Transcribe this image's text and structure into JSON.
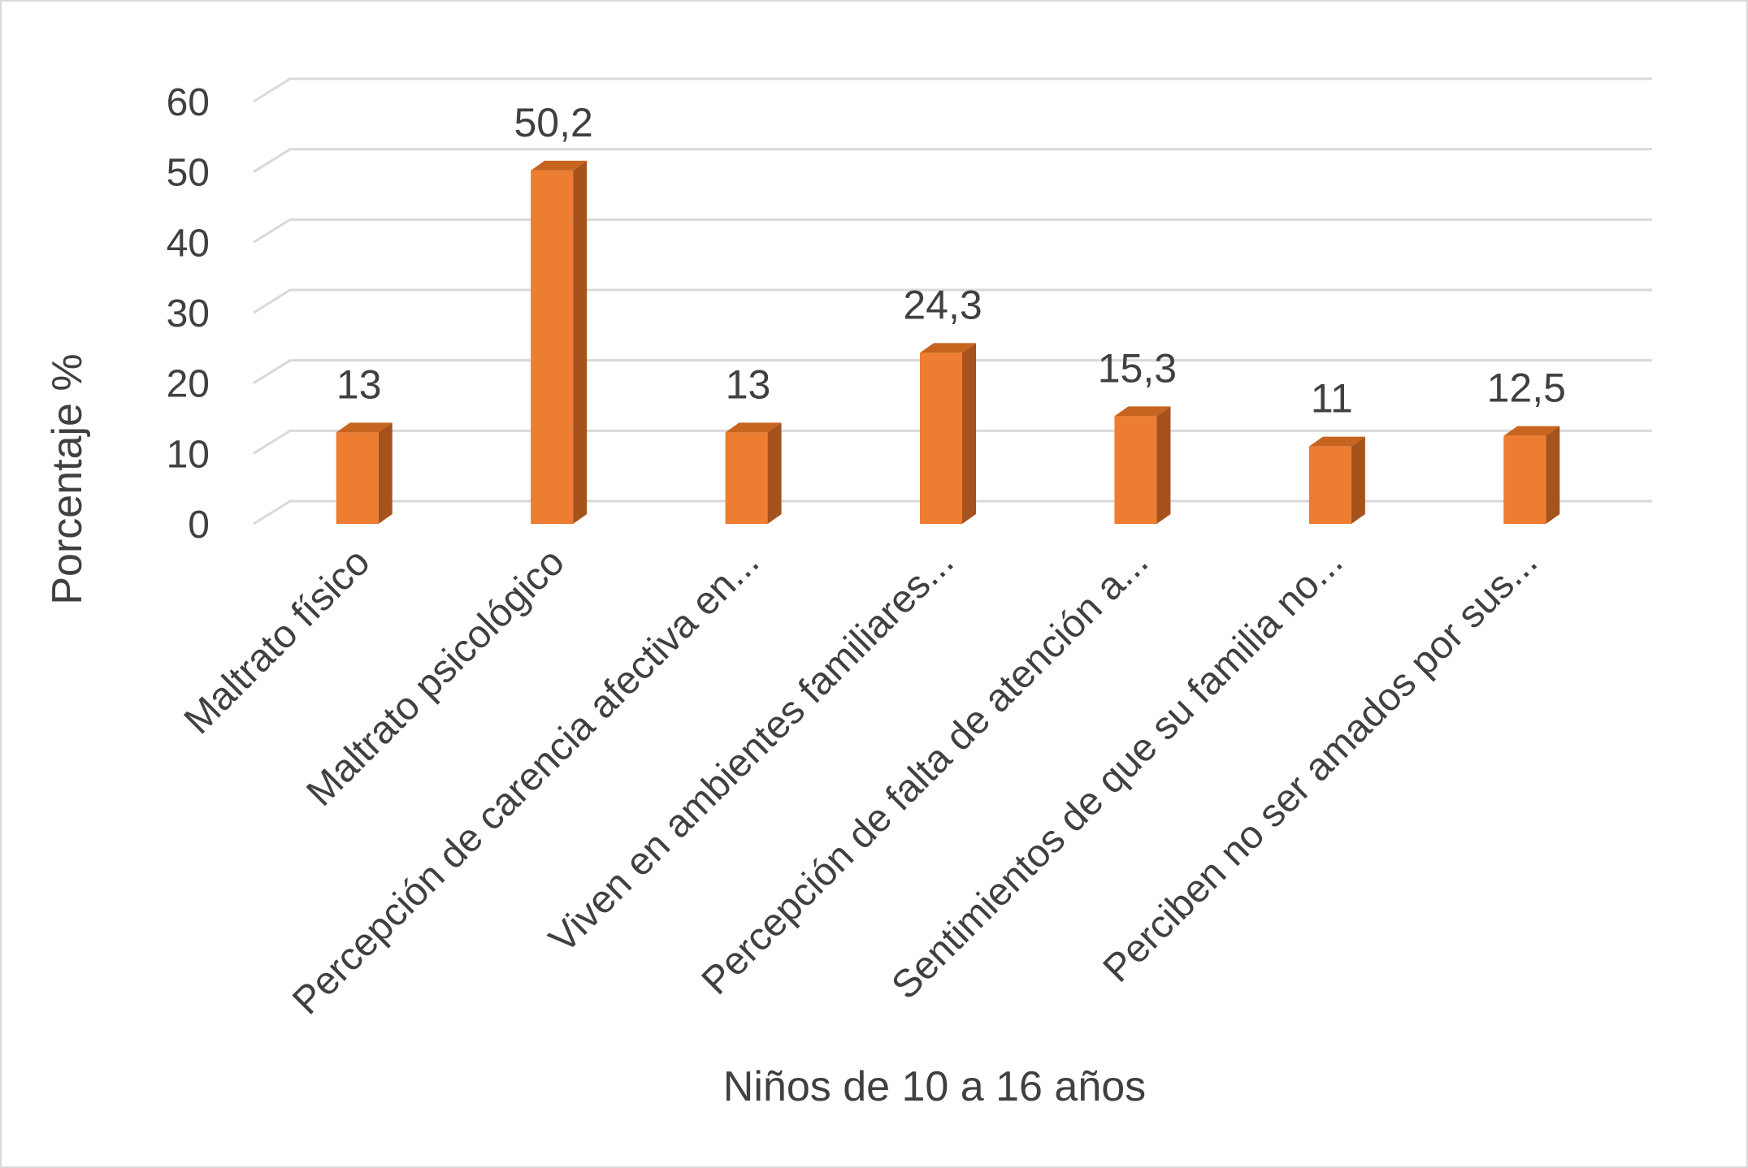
{
  "chart_data": {
    "type": "bar",
    "style": "3d-column",
    "categories": [
      "Maltrato físico",
      "Maltrato psicológico",
      "Percepción de carencia afectiva en...",
      "Viven en ambientes familiares...",
      "Percepción de falta de atención a...",
      "Sentimientos de que su familia no...",
      "Perciben no ser amados por sus..."
    ],
    "values": [
      13,
      50.2,
      13,
      24.3,
      15.3,
      11,
      12.5
    ],
    "data_labels": [
      "13",
      "50,2",
      "13",
      "24,3",
      "15,3",
      "11",
      "12,5"
    ],
    "xlabel": "Niños de 10 a 16 años",
    "ylabel": "Porcentaje %",
    "ylim": [
      0,
      60
    ],
    "yticks": [
      0,
      10,
      20,
      30,
      40,
      50,
      60
    ],
    "grid": true,
    "legend": "none",
    "colors": {
      "bar_front": "#ed7d31",
      "bar_side": "#a5521d",
      "bar_top": "#c7641f",
      "grid": "#d9d9d9",
      "text": "#404040"
    }
  }
}
